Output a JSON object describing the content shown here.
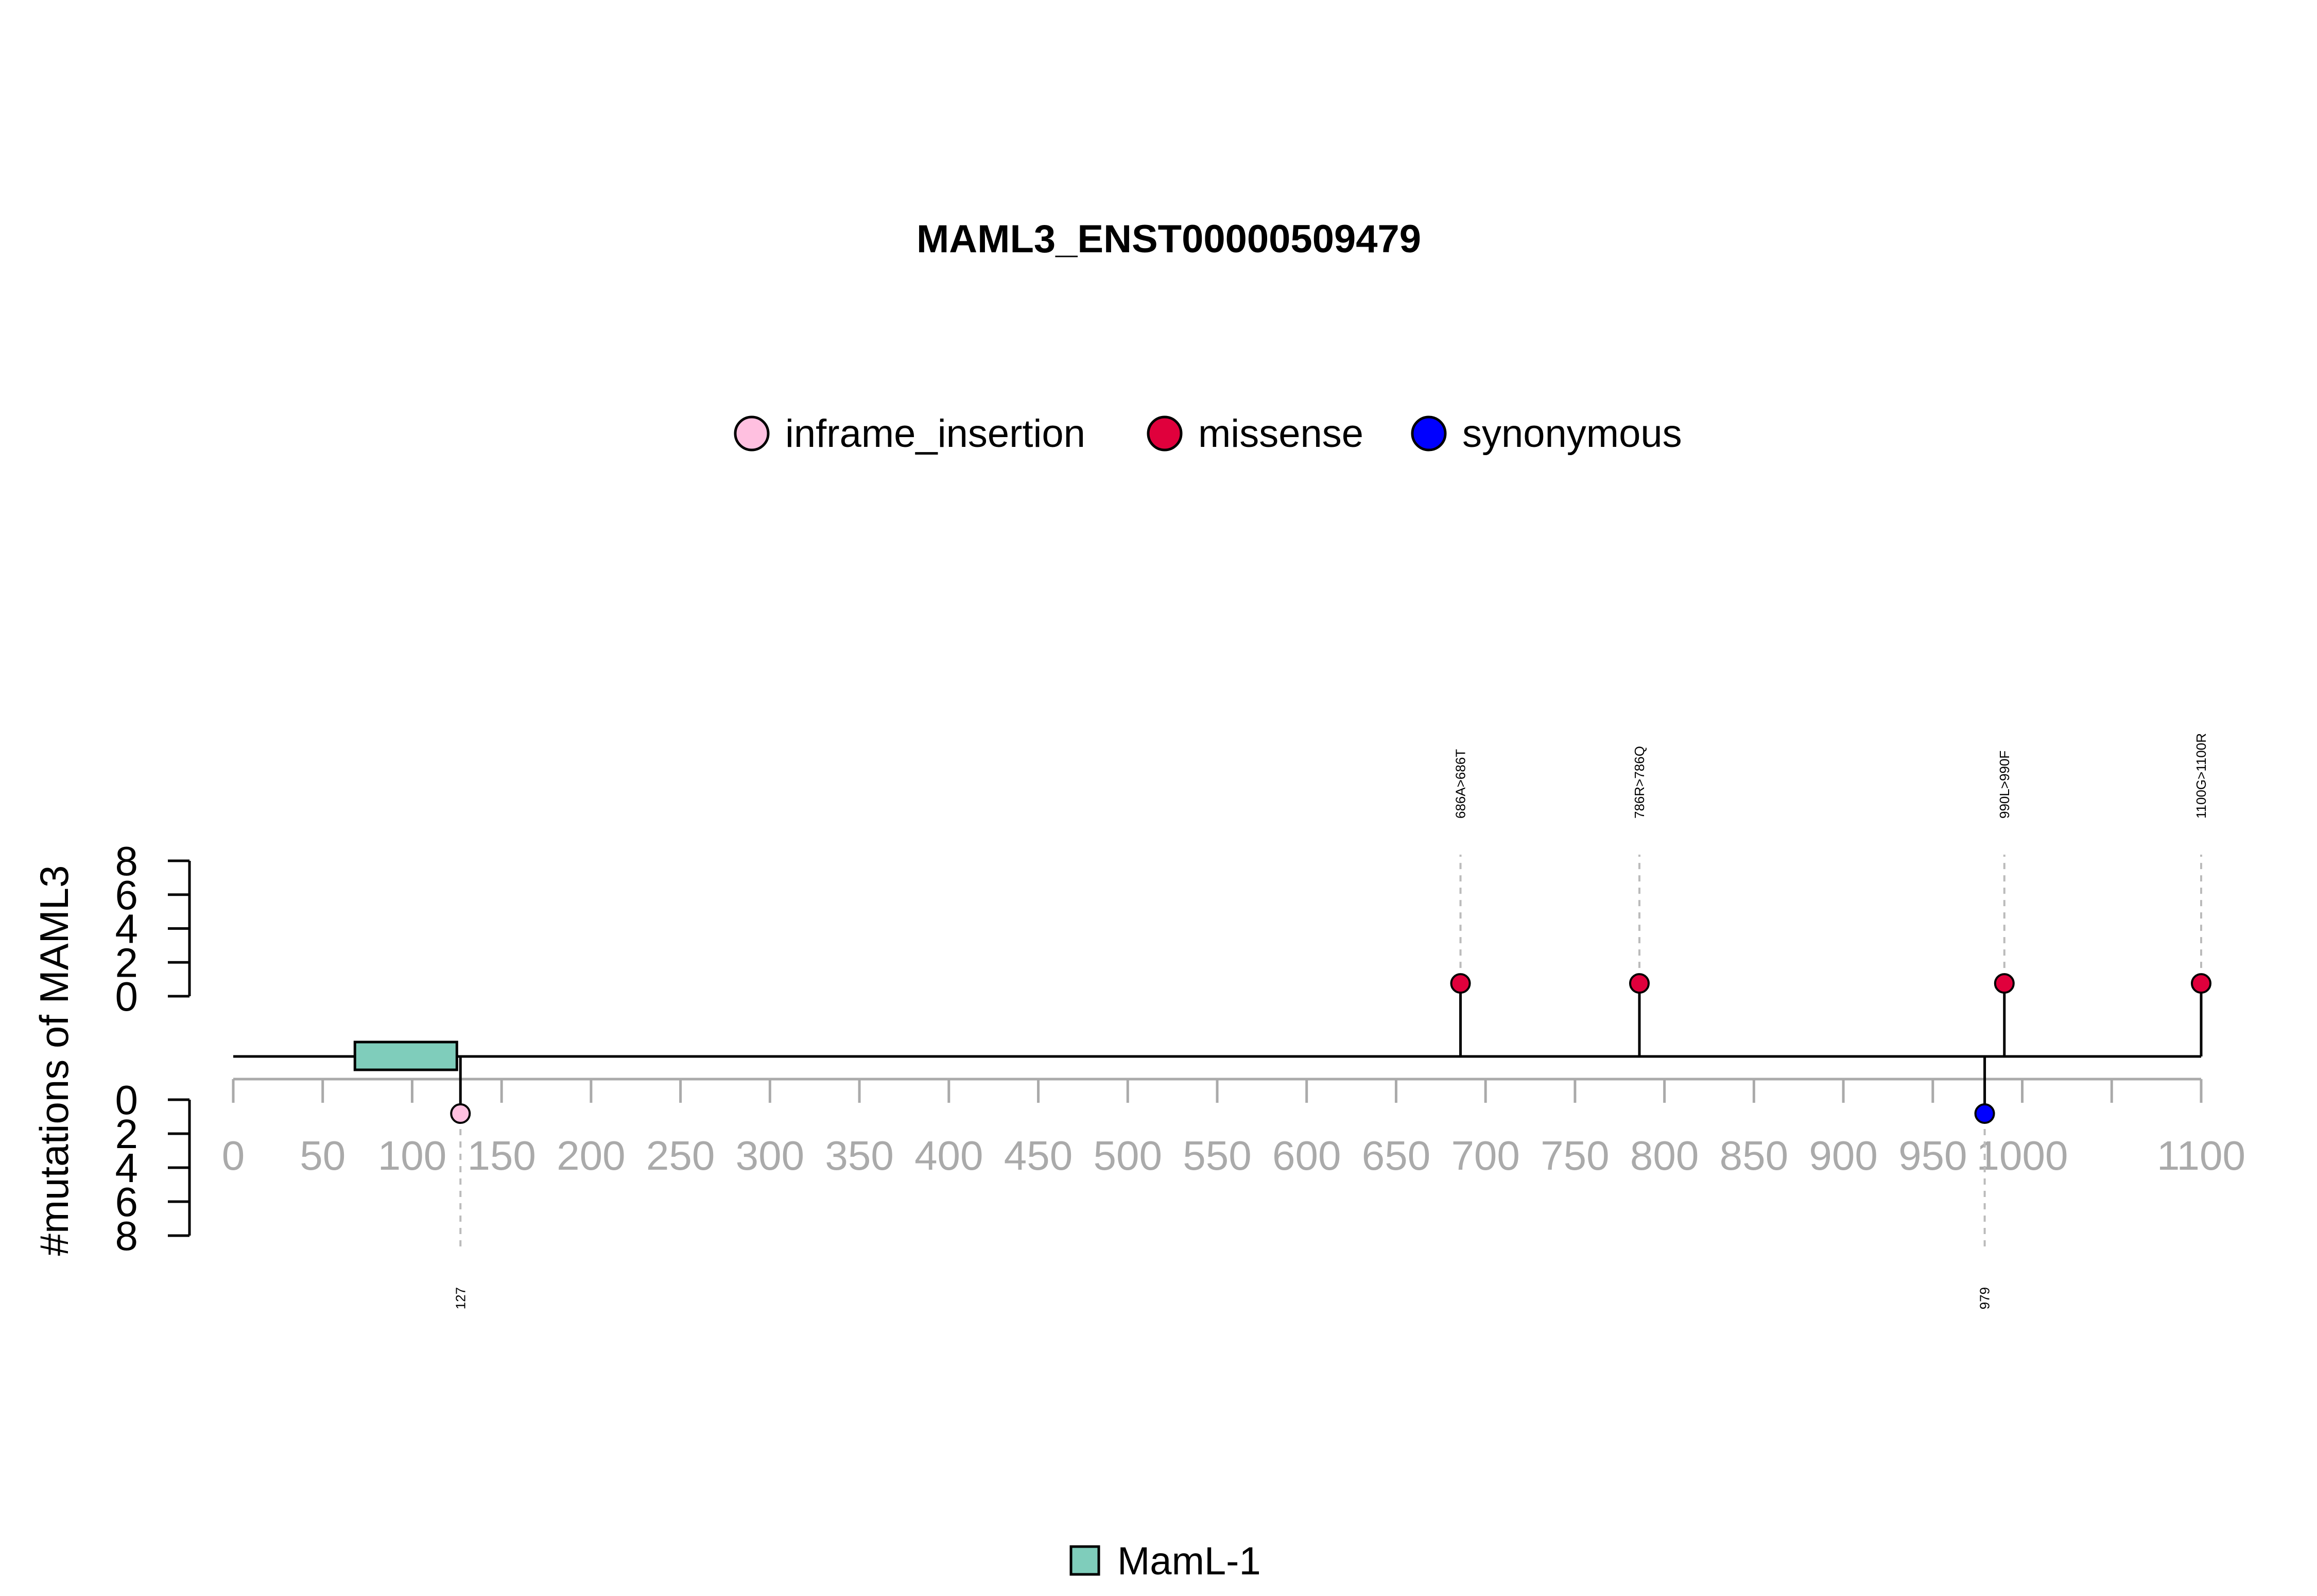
{
  "chart_data": {
    "type": "lollipop",
    "title": "MAML3_ENST00000509479",
    "ylabel": "#mutations of MAML3",
    "legend": {
      "position": "top-center",
      "items": [
        {
          "name": "inframe_insertion",
          "color": "#FFC0E0"
        },
        {
          "name": "missense",
          "color": "#E0003C"
        },
        {
          "name": "synonymous",
          "color": "#0000FF"
        }
      ]
    },
    "domain_legend": {
      "position": "bottom-center",
      "items": [
        {
          "name": "MamL-1",
          "color": "#7FCDBB"
        }
      ]
    },
    "x_axis": {
      "range": [
        0,
        1100
      ],
      "ticks": [
        0,
        50,
        100,
        150,
        200,
        250,
        300,
        350,
        400,
        450,
        500,
        550,
        600,
        650,
        700,
        750,
        800,
        850,
        900,
        950,
        1000,
        1050,
        1100
      ],
      "tick_labels": [
        "0",
        "50",
        "100",
        "150",
        "200",
        "250",
        "300",
        "350",
        "400",
        "450",
        "500",
        "550",
        "600",
        "650",
        "700",
        "750",
        "800",
        "850",
        "900",
        "950",
        "1000",
        "",
        "1100"
      ]
    },
    "y_axis": {
      "range": [
        0,
        8
      ],
      "ticks": [
        0,
        2,
        4,
        6,
        8
      ],
      "tick_labels": [
        "0",
        "2",
        "4",
        "6",
        "8"
      ]
    },
    "domains": [
      {
        "name": "MamL-1",
        "start": 68,
        "end": 125,
        "color": "#7FCDBB"
      }
    ],
    "mutations_top": [
      {
        "position": 686,
        "count": 1,
        "type": "missense",
        "label": "686A>686T"
      },
      {
        "position": 786,
        "count": 1,
        "type": "missense",
        "label": "786R>786Q"
      },
      {
        "position": 990,
        "count": 1,
        "type": "missense",
        "label": "990L>990F"
      },
      {
        "position": 1100,
        "count": 1,
        "type": "missense",
        "label": "1100G>1100R"
      }
    ],
    "mutations_bottom": [
      {
        "position": 127,
        "count": 1,
        "type": "inframe_insertion",
        "label": "127"
      },
      {
        "position": 979,
        "count": 1,
        "type": "synonymous",
        "label": "979"
      }
    ]
  }
}
